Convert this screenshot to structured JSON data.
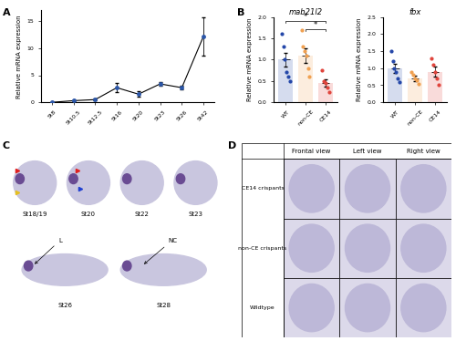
{
  "panel_labels": [
    "A",
    "B",
    "C",
    "D"
  ],
  "chart_data": [
    {
      "type": "line",
      "categories": [
        "St8",
        "St10.5",
        "St12.5",
        "St16",
        "St20",
        "St23",
        "St26",
        "St42"
      ],
      "values": [
        0,
        0.3,
        0.5,
        2.7,
        1.5,
        3.4,
        2.7,
        12.2
      ],
      "errors": [
        0,
        0.1,
        0.2,
        0.8,
        0.5,
        0.4,
        0.3,
        3.5
      ],
      "ylabel": "Relative mRNA expression",
      "ylim": [
        0,
        17
      ],
      "yticks": [
        0,
        5,
        10,
        15
      ],
      "color": "#2b56a8",
      "marker": "o"
    },
    {
      "type": "bar",
      "title": "mab21l2",
      "categories": [
        "WT",
        "non-CE",
        "CE14"
      ],
      "values": [
        1.0,
        1.1,
        0.45
      ],
      "errors": [
        0.17,
        0.17,
        0.08
      ],
      "points": [
        [
          1.6,
          1.3,
          1.0,
          0.7,
          0.6,
          0.5
        ],
        [
          1.7,
          1.3,
          1.2,
          1.1,
          0.8,
          0.6
        ],
        [
          0.75,
          0.5,
          0.45,
          0.35,
          0.25
        ]
      ],
      "colors": [
        "#2346a8",
        "#f0a050",
        "#e0443c"
      ],
      "ylabel": "Relative mRNA expression",
      "ylim": [
        0,
        2.0
      ],
      "yticks": [
        {
          "value": 0,
          "label": "0.0"
        },
        0.5,
        {
          "value": 1,
          "label": "1.0"
        },
        1.5,
        {
          "value": 2,
          "label": "2.0"
        }
      ],
      "annotations": [
        {
          "text": "*",
          "between": [
            0,
            2
          ]
        },
        {
          "text": "*",
          "between": [
            1,
            2
          ]
        }
      ]
    },
    {
      "type": "bar",
      "title": "fbx",
      "categories": [
        "WT",
        "non-CE",
        "CE14"
      ],
      "values": [
        1.0,
        0.7,
        0.9
      ],
      "errors": [
        0.13,
        0.07,
        0.14
      ],
      "points": [
        [
          1.5,
          1.2,
          1.0,
          0.9,
          0.7,
          0.6
        ],
        [
          0.9,
          0.8,
          0.7,
          0.65,
          0.55
        ],
        [
          1.3,
          1.1,
          0.9,
          0.7,
          0.5
        ]
      ],
      "colors": [
        "#2346a8",
        "#f0a050",
        "#e0443c"
      ],
      "ylabel": "Relative mRNA expression",
      "ylim": [
        0,
        2.5
      ],
      "yticks": [
        {
          "value": 0,
          "label": "0.0"
        },
        0.5,
        {
          "value": 1,
          "label": "1.0"
        },
        1.5,
        {
          "value": 2,
          "label": "2.0"
        },
        2.5
      ]
    }
  ],
  "image_panels": {
    "C": {
      "stages_top": [
        "St18/19",
        "St20",
        "St22",
        "St23"
      ],
      "stages_bottom": [
        "St26",
        "St28"
      ],
      "annotations": [
        "L",
        "NC"
      ]
    },
    "D": {
      "columns": [
        "Frontal view",
        "Left view",
        "Right view"
      ],
      "rows": [
        "CE14 crispants",
        "non-CE crispants",
        "Wildtype"
      ]
    }
  }
}
